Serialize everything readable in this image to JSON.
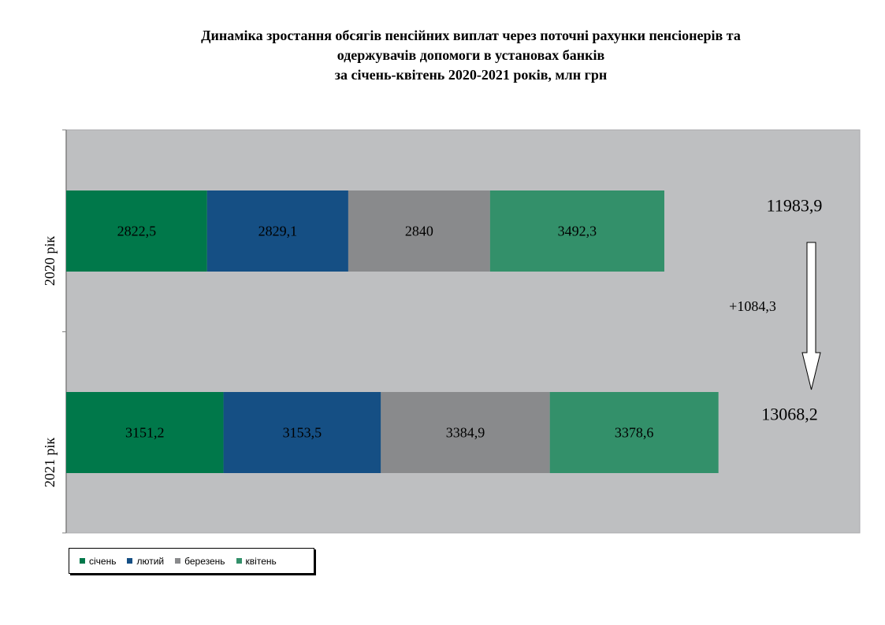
{
  "title_lines": [
    "Динаміка зростання обсягів пенсійних виплат через поточні рахунки пенсіонерів та",
    "одержувачів допомоги в установах банків",
    "за січень-квітень 2020-2021 років, млн грн"
  ],
  "chart_data": {
    "type": "bar",
    "orientation": "horizontal",
    "stacked": true,
    "categories": [
      "2020 рік",
      "2021 рік"
    ],
    "series": [
      {
        "name": "січень",
        "color": "#00784A",
        "values": [
          2822.5,
          3151.2
        ],
        "labels": [
          "2822,5",
          "3151,2"
        ]
      },
      {
        "name": "лютий",
        "color": "#154F84",
        "values": [
          2829.1,
          3153.5
        ],
        "labels": [
          "2829,1",
          "3153,5"
        ]
      },
      {
        "name": "березень",
        "color": "#898A8C",
        "values": [
          2840,
          3384.9
        ],
        "labels": [
          "2840",
          "3384,9"
        ]
      },
      {
        "name": "квітень",
        "color": "#33906A",
        "values": [
          3492.3,
          3378.6
        ],
        "labels": [
          "3492,3",
          "3378,6"
        ]
      }
    ],
    "totals": [
      "11983,9",
      "13068,2"
    ],
    "difference_label": "+1084,3",
    "xlim": [
      0,
      15900
    ],
    "plot_background": "#BEBFC1",
    "legend_position": "bottom-left",
    "grid": false
  }
}
